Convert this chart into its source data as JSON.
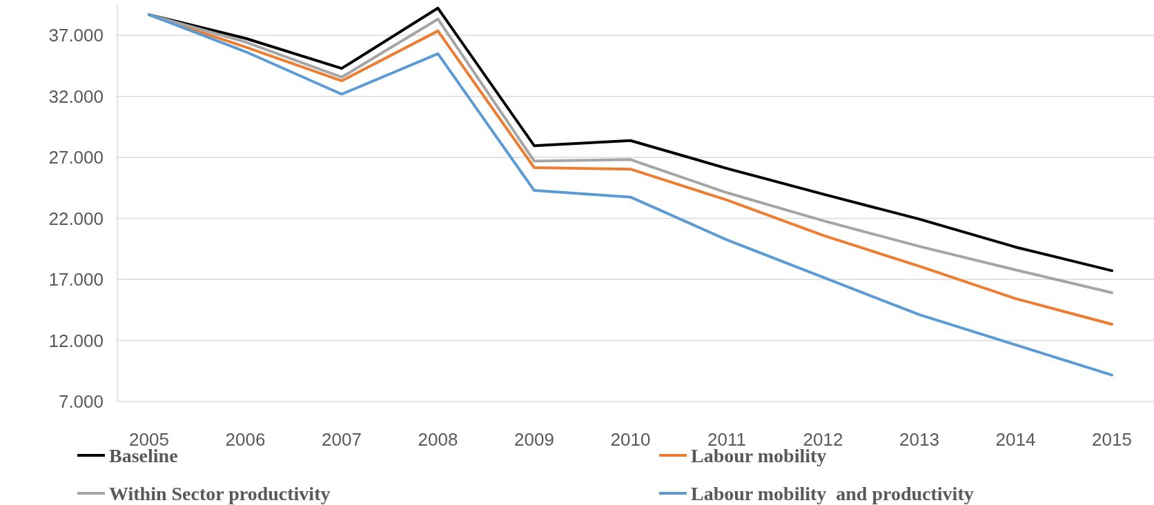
{
  "chart_data": {
    "type": "line",
    "categories": [
      "2005",
      "2006",
      "2007",
      "2008",
      "2009",
      "2010",
      "2011",
      "2012",
      "2013",
      "2014",
      "2015"
    ],
    "ylim": [
      7000,
      39500
    ],
    "yticks": [
      {
        "value": 7000,
        "label": "7.000"
      },
      {
        "value": 12000,
        "label": "12.000"
      },
      {
        "value": 17000,
        "label": "17.000"
      },
      {
        "value": 22000,
        "label": "22.000"
      },
      {
        "value": 27000,
        "label": "27.000"
      },
      {
        "value": 32000,
        "label": "32.000"
      },
      {
        "value": 37000,
        "label": "37.000"
      }
    ],
    "grid": "y",
    "legend": "bottom",
    "line_style": "solid",
    "marker": "none",
    "series": [
      {
        "name": "Baseline",
        "color": "#000000",
        "values": [
          38690,
          36760,
          34290,
          39230,
          27960,
          28380,
          26100,
          23990,
          21940,
          19650,
          17720
        ]
      },
      {
        "name": "Labour mobility",
        "color": "#ed7d31",
        "values": [
          38690,
          36040,
          33270,
          37360,
          26160,
          26040,
          23510,
          20610,
          18080,
          15430,
          13330
        ]
      },
      {
        "name": "Within Sector productivity",
        "color": "#a5a5a5",
        "values": [
          38690,
          36460,
          33570,
          38330,
          26700,
          26820,
          24110,
          21820,
          19710,
          17780,
          15920
        ]
      },
      {
        "name": "Labour mobility  and productivity",
        "color": "#5b9bd5",
        "values": [
          38690,
          35670,
          32180,
          35490,
          24290,
          23750,
          20250,
          17180,
          14110,
          11640,
          9170
        ]
      }
    ]
  }
}
